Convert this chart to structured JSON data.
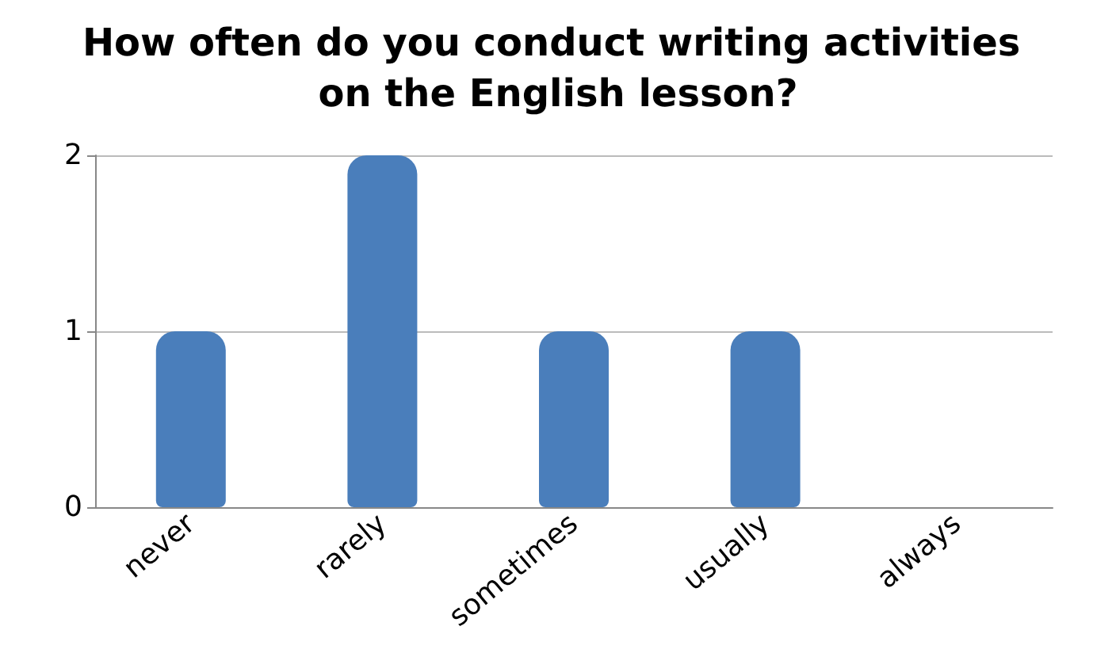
{
  "chart_data": {
    "type": "bar",
    "title": "How often do you conduct writing activities on the English lesson?",
    "categories": [
      "never",
      "rarely",
      "sometimes",
      "usually",
      "always"
    ],
    "values": [
      1,
      2,
      1,
      1,
      0
    ],
    "color": "#4a7ebb",
    "ylim": [
      0,
      2
    ],
    "yticks": [
      0,
      1,
      2
    ],
    "grid": "y"
  }
}
